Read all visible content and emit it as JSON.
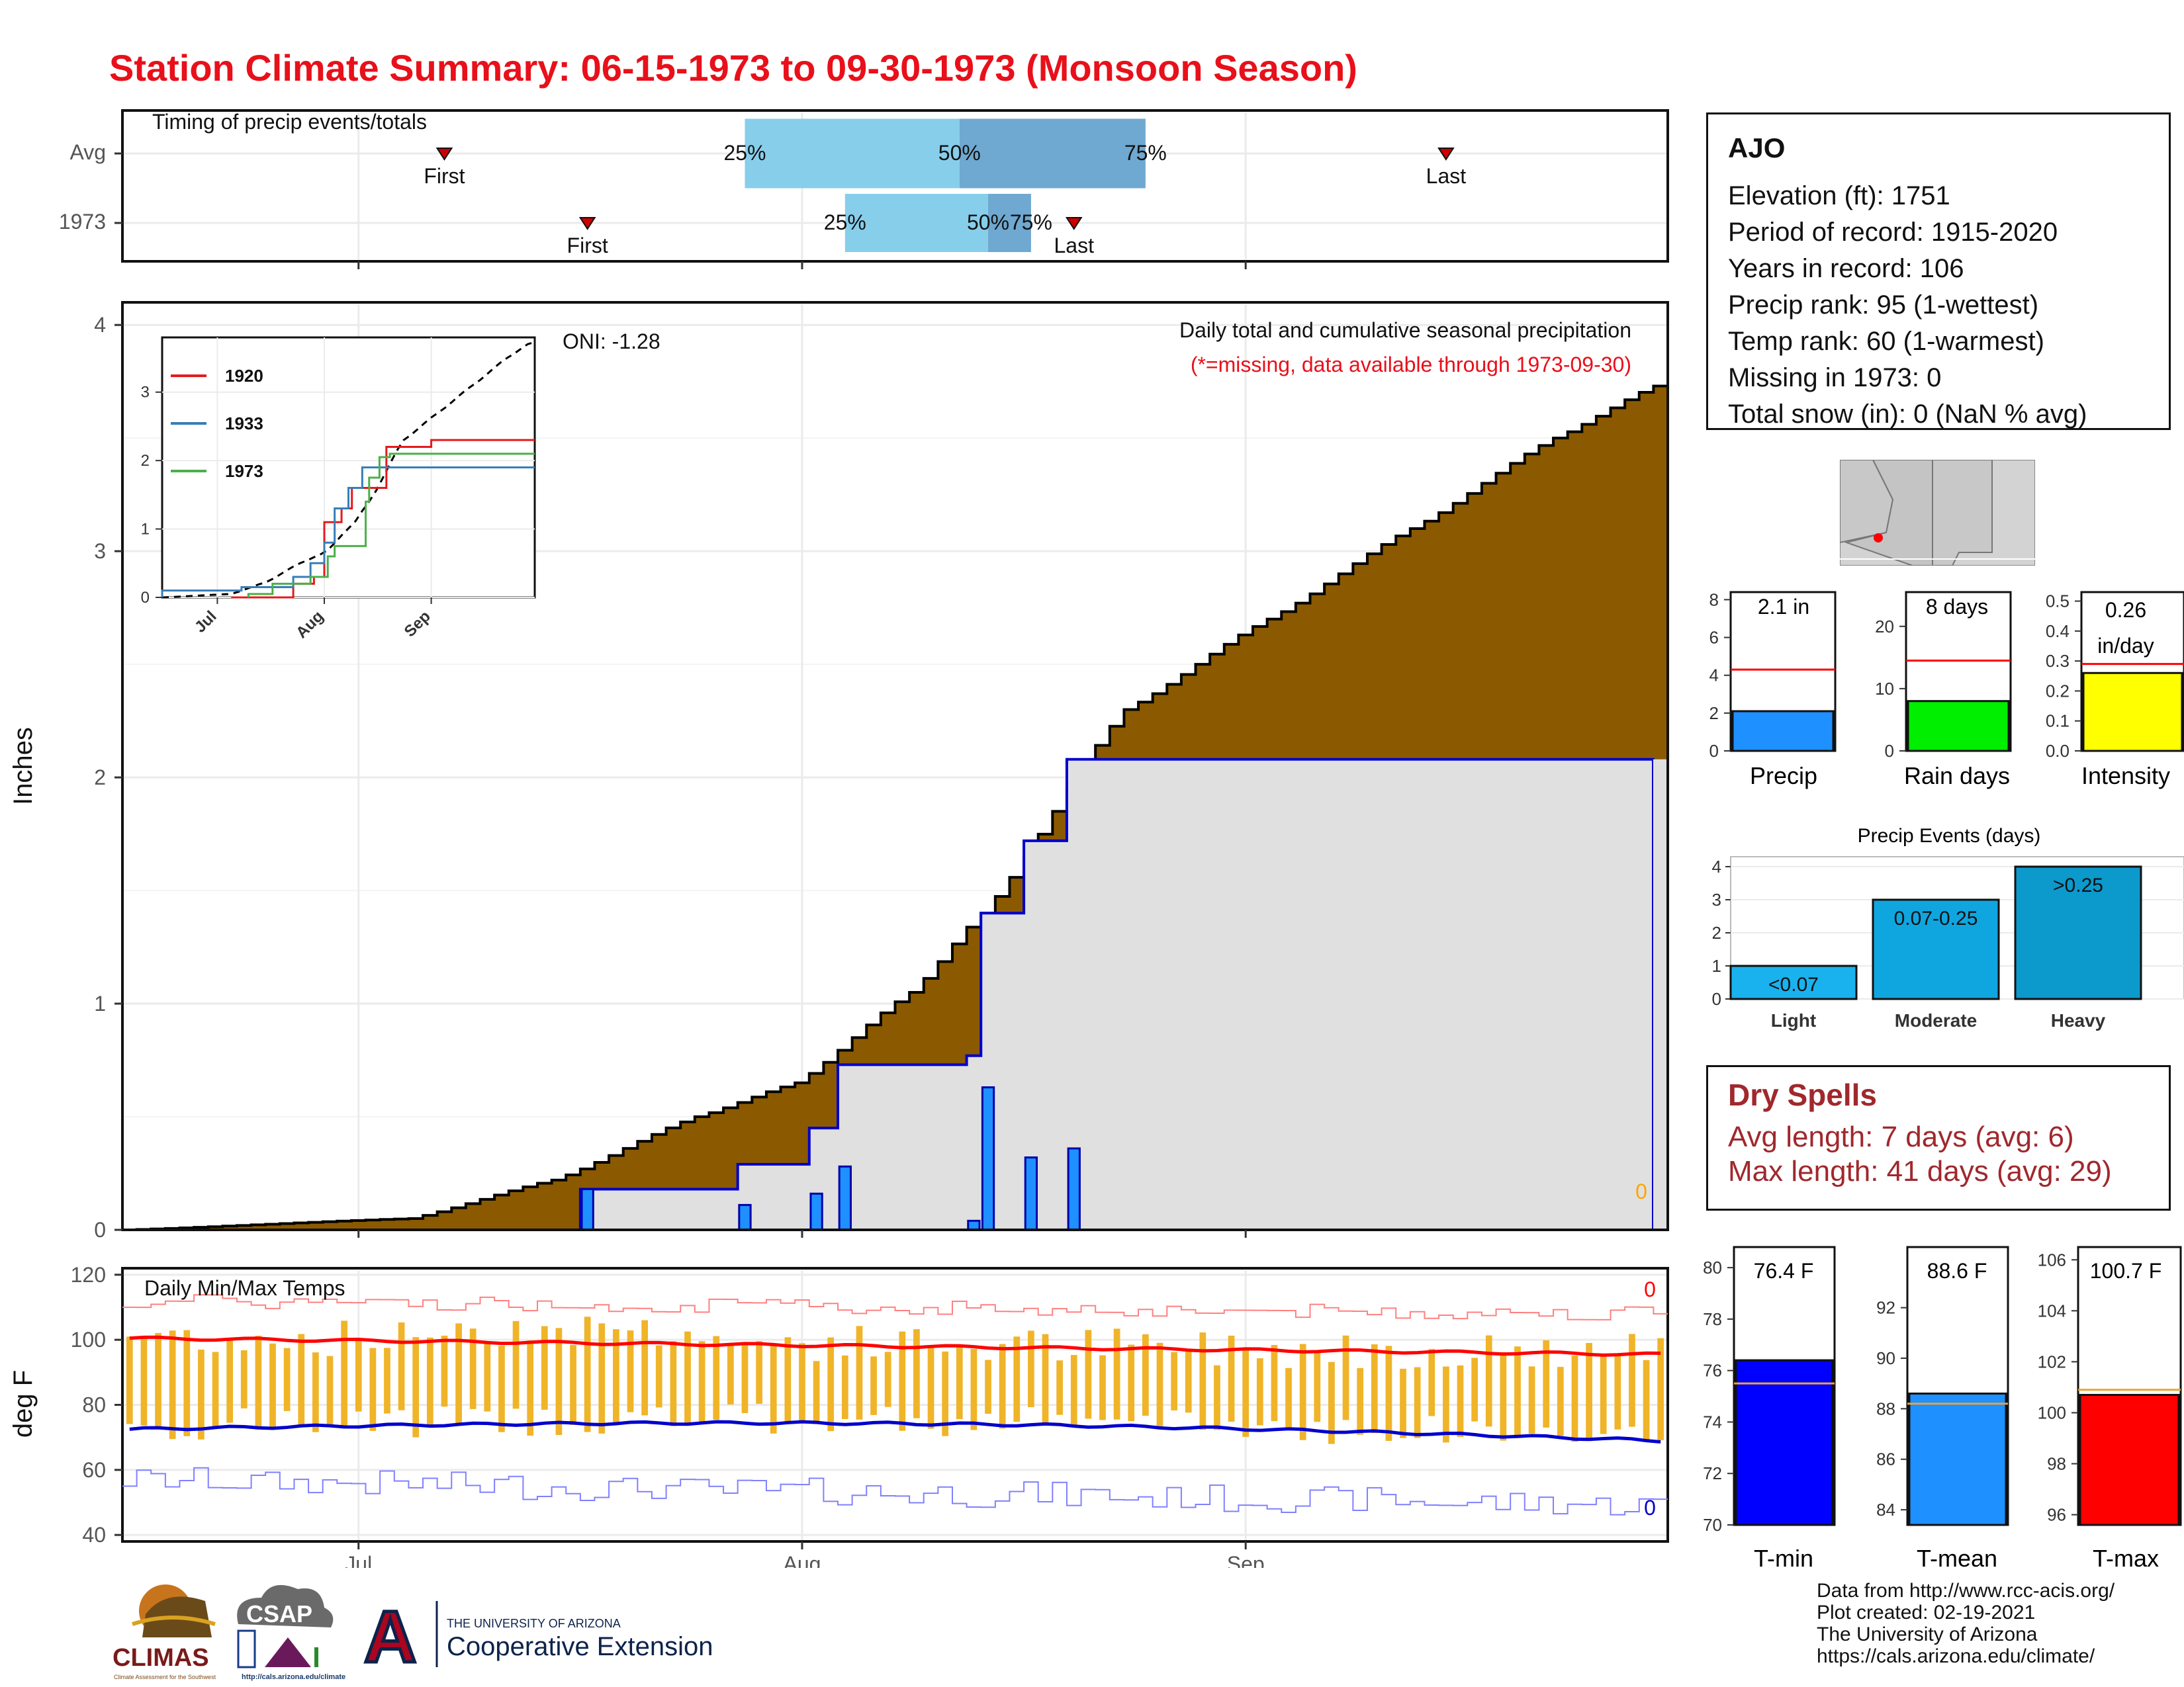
{
  "title": "Station Climate Summary: 06-15-1973 to 09-30-1973 (Monsoon Season)",
  "timing_panel": {
    "label": "Timing of precip events/totals",
    "rows": [
      {
        "name": "Avg",
        "first": "First",
        "last": "Last",
        "p25": "25%",
        "p50": "50%",
        "p75": "75%"
      },
      {
        "name": "1973",
        "first": "First",
        "last": "Last",
        "p25": "25%",
        "p50": "50%",
        "p75": "75%"
      }
    ]
  },
  "main_panel": {
    "ylabel": "Inches",
    "annotation": "Daily total and cumulative seasonal precipitation",
    "missing_note": "(*=missing, data available through 1973-09-30)",
    "oni": "ONI: -1.28",
    "missing_count": "0",
    "x_ticks": [
      "Jul",
      "Aug",
      "Sep"
    ],
    "y_ticks": [
      "0",
      "1",
      "2",
      "3",
      "4"
    ]
  },
  "inset": {
    "legend": [
      "1920",
      "1933",
      "1973"
    ],
    "colors": [
      "#e41a1c",
      "#377eb8",
      "#4daf4a"
    ],
    "x_ticks": [
      "Jul",
      "Aug",
      "Sep"
    ],
    "y_ticks": [
      "0",
      "1",
      "2",
      "3"
    ]
  },
  "temp_panel": {
    "label": "Daily Min/Max Temps",
    "ylabel": "deg F",
    "y_ticks": [
      "40",
      "60",
      "80",
      "100",
      "120"
    ],
    "x_ticks": [
      "Jul",
      "Aug",
      "Sep"
    ],
    "max_missing": "0",
    "min_missing": "0"
  },
  "info": {
    "station": "AJO",
    "elevation": "Elevation (ft): 1751",
    "period": "Period of record: 1915-2020",
    "years": "Years in record: 106",
    "precip_rank": "Precip rank: 95 (1-wettest)",
    "temp_rank": "Temp rank: 60 (1-warmest)",
    "missing": "Missing in 1973: 0",
    "snow": "Total snow (in): 0 (NaN % avg)"
  },
  "summary_bars": {
    "precip": {
      "label": "Precip",
      "value_text": "2.1 in",
      "value": 2.1,
      "avg": 4.3,
      "ticks": [
        "0",
        "2",
        "4",
        "6",
        "8"
      ],
      "color": "#1e90ff"
    },
    "raindays": {
      "label": "Rain days",
      "value_text": "8 days",
      "value": 8,
      "avg": 14.5,
      "ticks": [
        "0",
        "10",
        "20"
      ],
      "color": "#00ee00"
    },
    "intensity": {
      "label": "Intensity",
      "value_text_1": "0.26",
      "value_text_2": "in/day",
      "value": 0.26,
      "avg": 0.29,
      "ticks": [
        "0.0",
        "0.1",
        "0.2",
        "0.3",
        "0.4",
        "0.5"
      ],
      "color": "#ffff00"
    }
  },
  "precip_events": {
    "title": "Precip Events (days)",
    "categories": [
      "Light",
      "Moderate",
      "Heavy"
    ],
    "bar_labels": [
      "<0.07",
      "0.07-0.25",
      ">0.25"
    ],
    "values": [
      1,
      3,
      4
    ],
    "colors": [
      "#1ab2ee",
      "#0fa6e0",
      "#0c99cc"
    ],
    "ticks": [
      "0",
      "1",
      "2",
      "3",
      "4"
    ]
  },
  "dry_spells": {
    "title": "Dry Spells",
    "avg_length": "Avg length: 7 days (avg: 6)",
    "max_length": "Max length: 41 days (avg: 29)"
  },
  "temp_bars": {
    "tmin": {
      "label": "T-min",
      "value_text": "76.4 F",
      "value": 76.4,
      "avg": 75.5,
      "ticks": [
        "70",
        "72",
        "74",
        "76",
        "78",
        "80"
      ],
      "color": "#0000ff"
    },
    "tmean": {
      "label": "T-mean",
      "value_text": "88.6 F",
      "value": 88.6,
      "avg": 88.2,
      "ticks": [
        "84",
        "86",
        "88",
        "90",
        "92"
      ],
      "color": "#1e90ff"
    },
    "tmax": {
      "label": "T-max",
      "value_text": "100.7 F",
      "value": 100.7,
      "avg": 100.9,
      "ticks": [
        "96",
        "98",
        "100",
        "102",
        "104",
        "106"
      ],
      "color": "#ff0000"
    }
  },
  "credits": {
    "line1": "Data from http://www.rcc-acis.org/",
    "line2": "Plot created: 02-19-2021",
    "line3": "The University of Arizona",
    "line4": "https://cals.arizona.edu/climate/"
  },
  "logos": {
    "climas": "CLIMAS",
    "climas_sub": "Climate Assessment for the Southwest",
    "csap": "CSAP",
    "csap_url": "http://cals.arizona.edu/climate",
    "ua_letter": "A",
    "ua_line1": "THE UNIVERSITY OF ARIZONA",
    "ua_line2": "Cooperative Extension"
  },
  "chart_data": {
    "type": "area",
    "title": "Daily total and cumulative seasonal precipitation",
    "ylabel": "Inches",
    "ylim": [
      0,
      4.1
    ],
    "x_range": [
      "1973-06-15",
      "1973-09-30"
    ],
    "series": [
      {
        "name": "avg_cumulative_control_points",
        "x_day": [
          0,
          20,
          30,
          40,
          47,
          55,
          60,
          70,
          80,
          90,
          100,
          107
        ],
        "values": [
          0,
          0.05,
          0.22,
          0.5,
          0.65,
          1.05,
          1.4,
          2.3,
          2.7,
          3.1,
          3.5,
          3.73
        ]
      },
      {
        "name": "1973_daily",
        "x_day": [
          32,
          43,
          48,
          50,
          59,
          60,
          63,
          66
        ],
        "values": [
          0.18,
          0.11,
          0.16,
          0.28,
          0.04,
          0.63,
          0.32,
          0.36
        ]
      }
    ],
    "timing": {
      "avg": {
        "first": 22,
        "p25": 43,
        "p50": 58,
        "p75": 71,
        "last": 92
      },
      "1973": {
        "first": 32,
        "p25": 50,
        "p50": 60,
        "p75": 63,
        "last": 66
      }
    },
    "temperature": {
      "ylim": [
        38,
        122
      ],
      "tmax_avg_start": 100.5,
      "tmax_avg_end": 95.5,
      "tmin_avg_start": 72.5,
      "tmin_avg_end": 69
    }
  }
}
